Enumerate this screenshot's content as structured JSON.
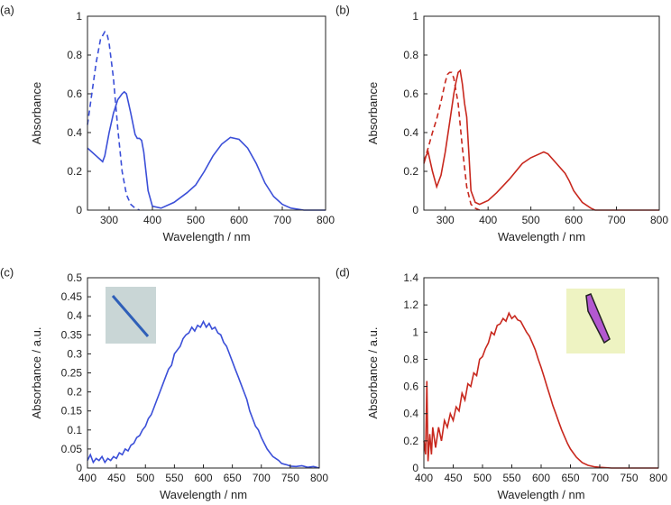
{
  "chart_data": [
    {
      "type": "line",
      "panel": "(a)",
      "xlabel": "Wavelength / nm",
      "ylabel": "Absorbance",
      "xlim": [
        250,
        800
      ],
      "ylim": [
        0,
        1
      ],
      "xticks": [
        300,
        400,
        500,
        600,
        700,
        800
      ],
      "yticks": [
        0,
        0.2,
        0.4,
        0.6,
        0.8,
        1
      ],
      "series": [
        {
          "color": "#3b4fd8",
          "linestyle": "solid",
          "x": [
            250,
            260,
            270,
            280,
            285,
            290,
            300,
            310,
            320,
            330,
            335,
            340,
            345,
            350,
            360,
            365,
            370,
            375,
            380,
            385,
            390,
            400,
            420,
            450,
            480,
            500,
            520,
            540,
            560,
            580,
            600,
            620,
            640,
            660,
            680,
            700,
            720,
            750,
            800
          ],
          "values": [
            0.32,
            0.3,
            0.28,
            0.26,
            0.25,
            0.28,
            0.4,
            0.5,
            0.57,
            0.6,
            0.61,
            0.6,
            0.55,
            0.5,
            0.39,
            0.37,
            0.37,
            0.36,
            0.3,
            0.2,
            0.1,
            0.02,
            0.01,
            0.04,
            0.09,
            0.13,
            0.2,
            0.28,
            0.34,
            0.375,
            0.365,
            0.32,
            0.24,
            0.14,
            0.07,
            0.03,
            0.01,
            0,
            0
          ]
        },
        {
          "color": "#3b4fd8",
          "linestyle": "dashed",
          "x": [
            250,
            260,
            270,
            280,
            290,
            295,
            300,
            310,
            320,
            330,
            340,
            350,
            360,
            370
          ],
          "values": [
            0.44,
            0.6,
            0.76,
            0.88,
            0.92,
            0.91,
            0.86,
            0.68,
            0.42,
            0.2,
            0.08,
            0.03,
            0.01,
            0
          ]
        }
      ]
    },
    {
      "type": "line",
      "panel": "(b)",
      "xlabel": "Wavelength / nm",
      "ylabel": "Absorbance",
      "xlim": [
        250,
        800
      ],
      "ylim": [
        0,
        1
      ],
      "xticks": [
        300,
        400,
        500,
        600,
        700,
        800
      ],
      "yticks": [
        0,
        0.2,
        0.4,
        0.6,
        0.8,
        1
      ],
      "series": [
        {
          "color": "#c8281e",
          "linestyle": "solid",
          "x": [
            250,
            255,
            260,
            265,
            270,
            280,
            290,
            300,
            310,
            320,
            325,
            330,
            335,
            340,
            345,
            350,
            355,
            360,
            370,
            380,
            400,
            420,
            450,
            480,
            500,
            520,
            530,
            540,
            560,
            580,
            590,
            600,
            620,
            640,
            650,
            700,
            800
          ],
          "values": [
            0.24,
            0.28,
            0.3,
            0.25,
            0.2,
            0.12,
            0.18,
            0.3,
            0.45,
            0.6,
            0.66,
            0.71,
            0.72,
            0.65,
            0.55,
            0.48,
            0.3,
            0.1,
            0.04,
            0.03,
            0.05,
            0.09,
            0.16,
            0.24,
            0.27,
            0.29,
            0.3,
            0.29,
            0.24,
            0.19,
            0.15,
            0.1,
            0.04,
            0.01,
            0,
            0,
            0
          ]
        },
        {
          "color": "#c8281e",
          "linestyle": "dashed",
          "x": [
            250,
            260,
            270,
            280,
            290,
            300,
            305,
            310,
            315,
            320,
            330,
            340,
            350,
            360,
            370,
            380
          ],
          "values": [
            0.25,
            0.32,
            0.4,
            0.47,
            0.56,
            0.66,
            0.7,
            0.71,
            0.71,
            0.68,
            0.55,
            0.32,
            0.12,
            0.03,
            0.01,
            0
          ]
        }
      ]
    },
    {
      "type": "line",
      "panel": "(c)",
      "xlabel": "Wavelength / nm",
      "ylabel": "Absorbance / a.u.",
      "xlim": [
        400,
        800
      ],
      "ylim": [
        0,
        0.5
      ],
      "xticks": [
        400,
        450,
        500,
        550,
        600,
        650,
        700,
        750,
        800
      ],
      "yticks": [
        0,
        0.05,
        0.1,
        0.15,
        0.2,
        0.25,
        0.3,
        0.35,
        0.4,
        0.45,
        0.5
      ],
      "series": [
        {
          "color": "#3b4fd8",
          "linestyle": "solid",
          "x": [
            400,
            405,
            410,
            415,
            420,
            425,
            430,
            435,
            440,
            445,
            450,
            455,
            460,
            465,
            470,
            475,
            480,
            485,
            490,
            495,
            500,
            505,
            510,
            515,
            520,
            525,
            530,
            535,
            540,
            545,
            550,
            555,
            560,
            565,
            570,
            575,
            580,
            585,
            590,
            595,
            600,
            605,
            610,
            615,
            620,
            625,
            630,
            635,
            640,
            645,
            650,
            655,
            660,
            665,
            670,
            675,
            680,
            685,
            690,
            695,
            700,
            705,
            710,
            715,
            720,
            725,
            730,
            735,
            740,
            745,
            750,
            760,
            770,
            780,
            790,
            800
          ],
          "values": [
            0.02,
            0.035,
            0.015,
            0.025,
            0.02,
            0.03,
            0.015,
            0.025,
            0.02,
            0.03,
            0.025,
            0.04,
            0.035,
            0.05,
            0.045,
            0.06,
            0.065,
            0.08,
            0.085,
            0.1,
            0.11,
            0.13,
            0.14,
            0.16,
            0.18,
            0.2,
            0.22,
            0.24,
            0.26,
            0.27,
            0.3,
            0.31,
            0.32,
            0.34,
            0.35,
            0.355,
            0.37,
            0.36,
            0.375,
            0.37,
            0.385,
            0.37,
            0.38,
            0.365,
            0.37,
            0.355,
            0.35,
            0.33,
            0.32,
            0.3,
            0.28,
            0.26,
            0.24,
            0.22,
            0.2,
            0.18,
            0.15,
            0.13,
            0.11,
            0.1,
            0.08,
            0.065,
            0.05,
            0.04,
            0.03,
            0.025,
            0.02,
            0.012,
            0.01,
            0.008,
            0.005,
            0.004,
            0.006,
            0.002,
            0.004,
            0
          ]
        }
      ]
    },
    {
      "type": "line",
      "panel": "(d)",
      "xlabel": "Wavelength / nm",
      "ylabel": "Absorbance / a.u.",
      "xlim": [
        400,
        800
      ],
      "ylim": [
        0,
        1.4
      ],
      "xticks": [
        400,
        450,
        500,
        550,
        600,
        650,
        700,
        750,
        800
      ],
      "yticks": [
        0,
        0.2,
        0.4,
        0.6,
        0.8,
        1,
        1.2,
        1.4
      ],
      "series": [
        {
          "color": "#c8281e",
          "linestyle": "solid",
          "x": [
            400,
            403,
            405,
            407,
            410,
            413,
            415,
            420,
            425,
            430,
            435,
            440,
            445,
            450,
            455,
            460,
            465,
            470,
            475,
            480,
            485,
            490,
            495,
            500,
            505,
            510,
            515,
            520,
            525,
            530,
            535,
            540,
            545,
            550,
            555,
            560,
            565,
            570,
            575,
            580,
            585,
            590,
            595,
            600,
            605,
            610,
            615,
            620,
            625,
            630,
            635,
            640,
            645,
            650,
            660,
            670,
            680,
            690,
            700,
            720,
            750,
            800
          ],
          "values": [
            0.2,
            0.1,
            0.64,
            0.05,
            0.25,
            0.1,
            0.3,
            0.15,
            0.3,
            0.2,
            0.35,
            0.3,
            0.4,
            0.35,
            0.45,
            0.42,
            0.55,
            0.5,
            0.62,
            0.6,
            0.7,
            0.68,
            0.8,
            0.82,
            0.88,
            0.92,
            1.0,
            0.98,
            1.05,
            1.06,
            1.1,
            1.08,
            1.14,
            1.1,
            1.12,
            1.09,
            1.08,
            1.04,
            1.0,
            0.97,
            0.92,
            0.87,
            0.8,
            0.74,
            0.67,
            0.6,
            0.53,
            0.46,
            0.4,
            0.34,
            0.28,
            0.23,
            0.18,
            0.14,
            0.08,
            0.04,
            0.02,
            0.01,
            0.005,
            0,
            0,
            0
          ]
        }
      ]
    }
  ]
}
